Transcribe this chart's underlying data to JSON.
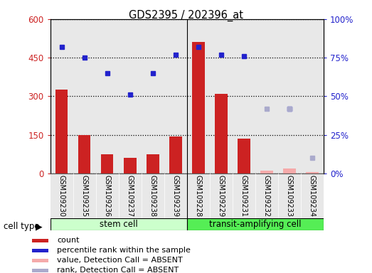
{
  "title": "GDS2395 / 202396_at",
  "samples": [
    "GSM109230",
    "GSM109235",
    "GSM109236",
    "GSM109237",
    "GSM109238",
    "GSM109239",
    "GSM109228",
    "GSM109229",
    "GSM109231",
    "GSM109232",
    "GSM109233",
    "GSM109234"
  ],
  "count_values": [
    325,
    148,
    75,
    60,
    75,
    143,
    510,
    310,
    135,
    10,
    20,
    5
  ],
  "percentile_values": [
    82,
    75,
    65,
    51,
    65,
    77,
    82,
    77,
    76,
    null,
    42,
    null
  ],
  "absent_rank_values": [
    null,
    null,
    null,
    null,
    null,
    null,
    null,
    null,
    null,
    42,
    42,
    10
  ],
  "count_absent": [
    false,
    false,
    false,
    false,
    false,
    false,
    false,
    false,
    false,
    true,
    true,
    true
  ],
  "percentile_absent": [
    false,
    false,
    false,
    false,
    false,
    false,
    false,
    false,
    false,
    true,
    false,
    true
  ],
  "ylim_left": [
    0,
    600
  ],
  "ylim_right": [
    0,
    100
  ],
  "yticks_left": [
    0,
    150,
    300,
    450,
    600
  ],
  "yticks_right": [
    0,
    25,
    50,
    75,
    100
  ],
  "ytick_labels_right": [
    "0%",
    "25%",
    "50%",
    "75%",
    "100%"
  ],
  "cell_types": [
    "stem cell",
    "transit-amplifying cell"
  ],
  "bar_color": "#cc2222",
  "bar_absent_color": "#f5aaaa",
  "dot_color": "#2222cc",
  "dot_absent_color": "#aaaacc",
  "stem_cell_color": "#ccffcc",
  "transit_color": "#55ee55",
  "bg_color": "#cccccc",
  "legend_items": [
    {
      "label": "count",
      "color": "#cc2222"
    },
    {
      "label": "percentile rank within the sample",
      "color": "#2222cc"
    },
    {
      "label": "value, Detection Call = ABSENT",
      "color": "#f5aaaa"
    },
    {
      "label": "rank, Detection Call = ABSENT",
      "color": "#aaaacc"
    }
  ]
}
